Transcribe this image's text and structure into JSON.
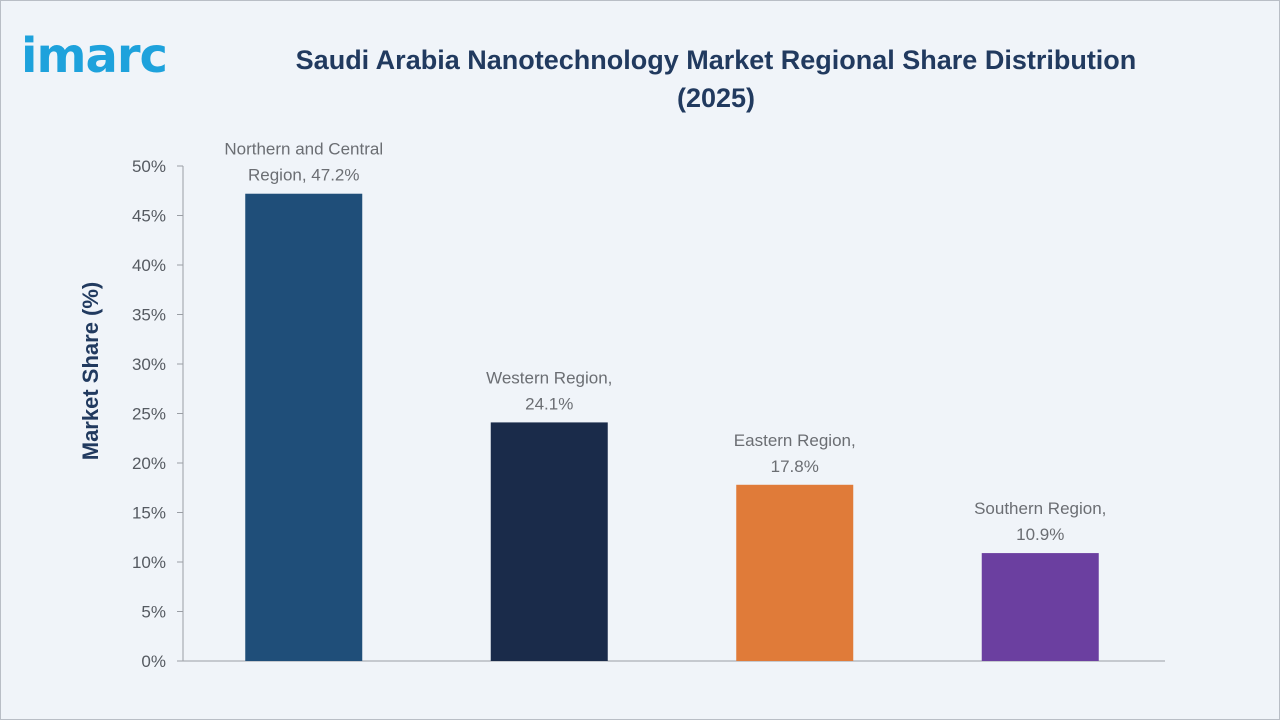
{
  "brand": {
    "logo_text": "imarc"
  },
  "chart_data": {
    "type": "bar",
    "title": "Saudi Arabia Nanotechnology Market Regional Share Distribution (2025)",
    "xlabel": "",
    "ylabel": "Market Share (%)",
    "ylim": [
      0,
      50
    ],
    "yticks": [
      "0%",
      "5%",
      "10%",
      "15%",
      "20%",
      "25%",
      "30%",
      "35%",
      "40%",
      "45%",
      "50%"
    ],
    "grid": false,
    "categories": [
      "Northern and Central Region",
      "Western Region",
      "Eastern Region",
      "Southern Region"
    ],
    "values": [
      47.2,
      24.1,
      17.8,
      10.9
    ],
    "colors": [
      "#1f4e79",
      "#1a2b4a",
      "#e07b39",
      "#6b3fa0"
    ],
    "data_labels": [
      [
        "Northern and Central",
        "Region, 47.2%"
      ],
      [
        "Western Region,",
        "24.1%"
      ],
      [
        "Eastern Region,",
        "17.8%"
      ],
      [
        "Southern Region,",
        "10.9%"
      ]
    ]
  }
}
